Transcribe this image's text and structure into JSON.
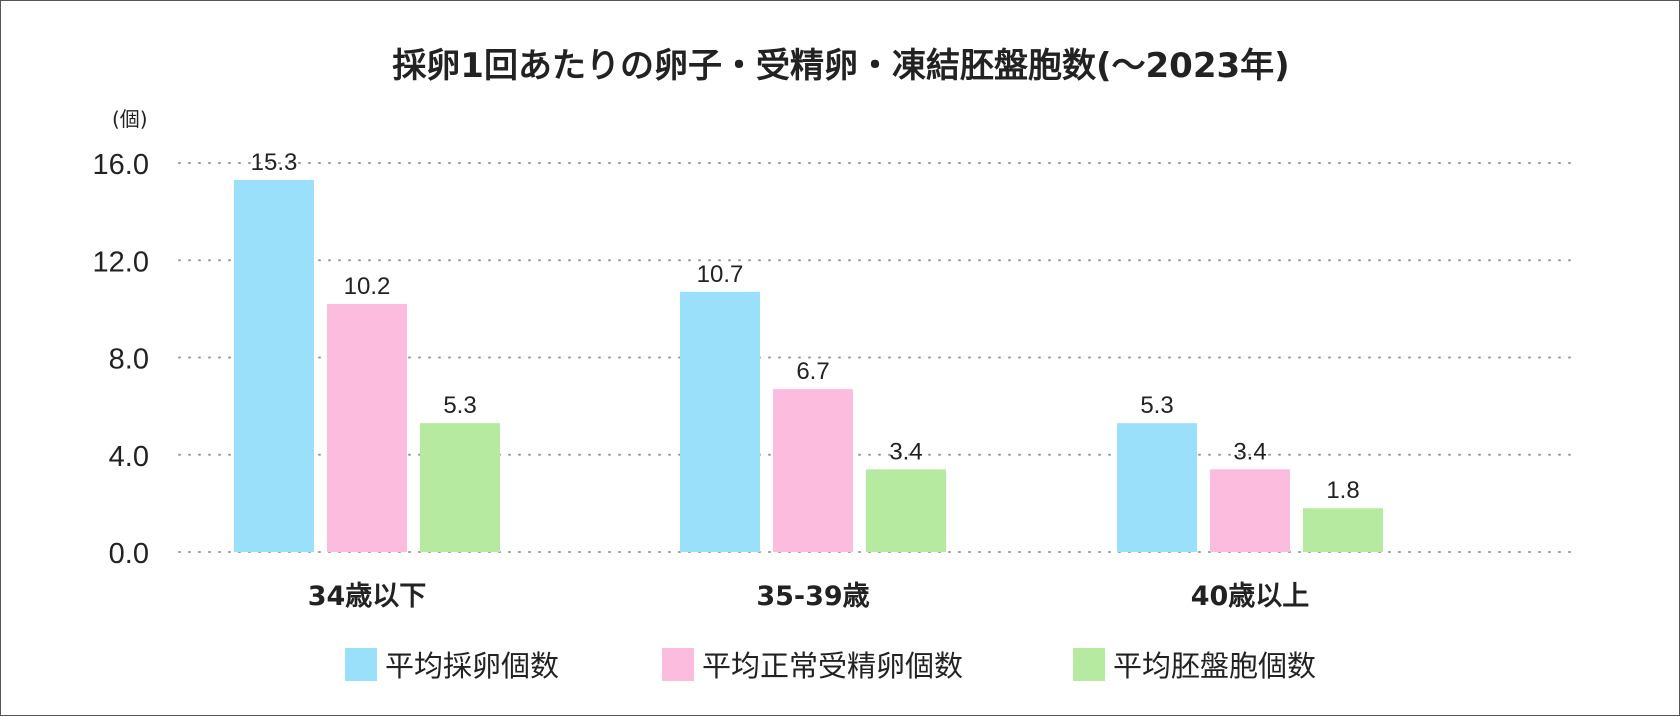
{
  "chart_data": {
    "type": "bar",
    "title": "採卵1回あたりの卵子・受精卵・凍結胚盤胞数(〜2023年)",
    "ylabel": "(個)",
    "xlabel": "",
    "ylim": [
      0,
      16
    ],
    "yticks": [
      "0.0",
      "4.0",
      "8.0",
      "12.0",
      "16.0"
    ],
    "grid": true,
    "legend_position": "bottom",
    "categories": [
      "34歳以下",
      "35-39歳",
      "40歳以上"
    ],
    "series": [
      {
        "name": "平均採卵個数",
        "color": "#9be0fb",
        "values": [
          15.3,
          10.7,
          5.3
        ]
      },
      {
        "name": "平均正常受精卵個数",
        "color": "#fcbcdd",
        "values": [
          10.2,
          6.7,
          3.4
        ]
      },
      {
        "name": "平均胚盤胞個数",
        "color": "#b5eaa0",
        "values": [
          5.3,
          3.4,
          1.8
        ]
      }
    ]
  }
}
